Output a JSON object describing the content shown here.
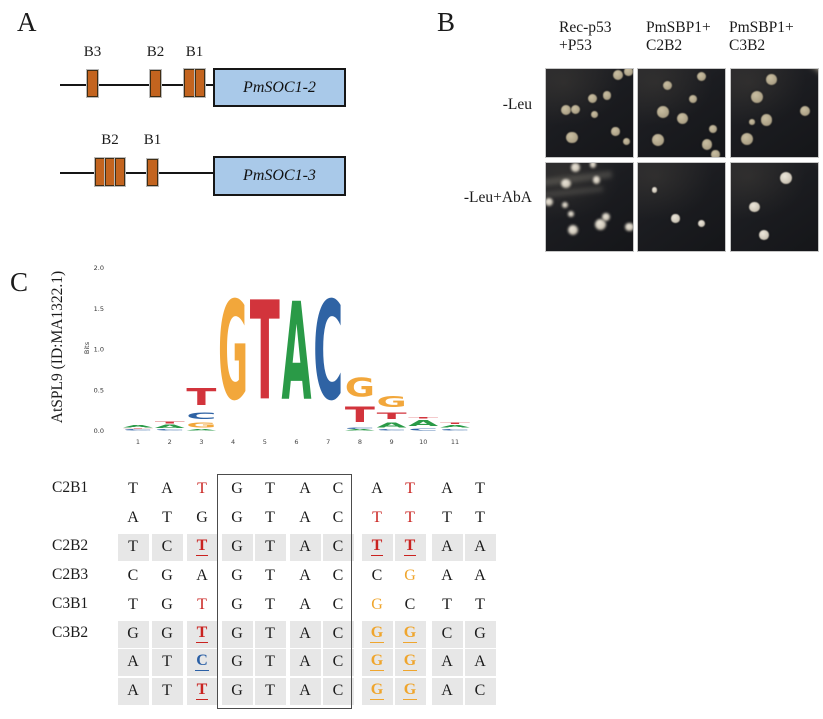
{
  "panel_a": {
    "label": "A",
    "site_color": "#c3641f",
    "gene_box_color": "#a9c9e9",
    "genes": [
      {
        "name": "PmSOC1-2",
        "sites": [
          {
            "label": "B3",
            "boxes": 1
          },
          {
            "label": "B2",
            "boxes": 1
          },
          {
            "label": "B1",
            "boxes": 2
          }
        ]
      },
      {
        "name": "PmSOC1-3",
        "sites": [
          {
            "label": "B2",
            "boxes": 3
          },
          {
            "label": "B1",
            "boxes": 1
          }
        ]
      }
    ]
  },
  "panel_b": {
    "label": "B",
    "col_labels": [
      {
        "line1": "Rec-p53",
        "line2": "+P53"
      },
      {
        "line1": "PmSBP1+",
        "line2": "C2B2"
      },
      {
        "line1": "PmSBP1+",
        "line2": "C3B2"
      }
    ],
    "row_labels": [
      "-Leu",
      "-Leu+AbA"
    ],
    "colony_colors": {
      "top": "#b7ac91",
      "bottom": "#d6d0c4"
    },
    "photos": [
      {
        "row": 0,
        "col": 0,
        "colonies": [
          [
            0.83,
            0.07,
            0.06
          ],
          [
            0.95,
            0.03,
            0.048
          ],
          [
            0.53,
            0.33,
            0.052
          ],
          [
            0.7,
            0.3,
            0.05
          ],
          [
            0.23,
            0.47,
            0.058
          ],
          [
            0.34,
            0.46,
            0.055
          ],
          [
            0.56,
            0.52,
            0.042
          ],
          [
            0.3,
            0.78,
            0.065
          ],
          [
            0.8,
            0.71,
            0.048
          ],
          [
            0.93,
            0.82,
            0.04
          ]
        ]
      },
      {
        "row": 0,
        "col": 1,
        "colonies": [
          [
            0.34,
            0.19,
            0.055
          ],
          [
            0.73,
            0.09,
            0.052
          ],
          [
            0.63,
            0.34,
            0.048
          ],
          [
            0.29,
            0.49,
            0.068
          ],
          [
            0.51,
            0.56,
            0.065
          ],
          [
            0.86,
            0.68,
            0.048
          ],
          [
            0.23,
            0.81,
            0.068
          ],
          [
            0.79,
            0.86,
            0.06
          ],
          [
            0.89,
            0.97,
            0.048
          ]
        ]
      },
      {
        "row": 0,
        "col": 2,
        "colonies": [
          [
            0.47,
            0.12,
            0.062
          ],
          [
            0.3,
            0.32,
            0.07
          ],
          [
            0.24,
            0.6,
            0.032
          ],
          [
            0.41,
            0.58,
            0.066
          ],
          [
            0.85,
            0.48,
            0.058
          ],
          [
            0.18,
            0.8,
            0.07
          ]
        ]
      },
      {
        "row": 1,
        "col": 0,
        "colonies": [
          [
            0.34,
            0.05,
            0.048
          ],
          [
            0.54,
            0.02,
            0.04
          ],
          [
            0.23,
            0.23,
            0.052
          ],
          [
            0.58,
            0.19,
            0.044
          ],
          [
            0.03,
            0.44,
            0.046
          ],
          [
            0.22,
            0.48,
            0.036
          ],
          [
            0.29,
            0.58,
            0.032
          ],
          [
            0.31,
            0.76,
            0.06
          ],
          [
            0.63,
            0.7,
            0.064
          ],
          [
            0.69,
            0.61,
            0.046
          ],
          [
            0.96,
            0.73,
            0.048
          ]
        ]
      },
      {
        "row": 1,
        "col": 1,
        "colonies": [
          [
            0.19,
            0.31,
            0.034
          ],
          [
            0.43,
            0.63,
            0.048
          ],
          [
            0.73,
            0.69,
            0.042
          ]
        ]
      },
      {
        "row": 1,
        "col": 2,
        "colonies": [
          [
            0.63,
            0.17,
            0.07
          ],
          [
            0.27,
            0.5,
            0.058
          ],
          [
            0.38,
            0.82,
            0.056
          ]
        ]
      }
    ]
  },
  "panel_c": {
    "label": "C",
    "logo_title": "AtSPL9 (ID:MA1322.1)",
    "chart_data": {
      "type": "sequence_logo",
      "title": "AtSPL9 (ID:MA1322.1)",
      "ylabel": "Bits",
      "ylim": [
        0,
        2
      ],
      "yticks": [
        "2.0",
        "1.5",
        "1.0",
        "0.5",
        "0.0"
      ],
      "positions": [
        1,
        2,
        3,
        4,
        5,
        6,
        7,
        8,
        9,
        10,
        11
      ],
      "letter_colors": {
        "A": "#2a9a47",
        "C": "#2f63a4",
        "G": "#f2a73b",
        "T": "#d2343c"
      },
      "stacks": [
        [
          [
            "C",
            0.02
          ],
          [
            "T",
            0.015
          ],
          [
            "A",
            0.05
          ]
        ],
        [
          [
            "C",
            0.025
          ],
          [
            "A",
            0.06
          ],
          [
            "T",
            0.04
          ]
        ],
        [
          [
            "A",
            0.02
          ],
          [
            "G",
            0.1
          ],
          [
            "C",
            0.13
          ],
          [
            "T",
            0.33
          ]
        ],
        [
          [
            "G",
            1.95
          ]
        ],
        [
          [
            "T",
            1.95
          ]
        ],
        [
          [
            "A",
            1.93
          ]
        ],
        [
          [
            "C",
            1.95
          ]
        ],
        [
          [
            "A",
            0.02
          ],
          [
            "C",
            0.03
          ],
          [
            "T",
            0.3
          ],
          [
            "G",
            0.37
          ]
        ],
        [
          [
            "C",
            0.02
          ],
          [
            "A",
            0.1
          ],
          [
            "T",
            0.13
          ],
          [
            "G",
            0.22
          ]
        ],
        [
          [
            "C",
            0.04
          ],
          [
            "A",
            0.11
          ],
          [
            "T",
            0.03
          ]
        ],
        [
          [
            "C",
            0.03
          ],
          [
            "A",
            0.05
          ],
          [
            "T",
            0.03
          ]
        ]
      ]
    },
    "table": {
      "highlight_colors": {
        "black": "#1b1b1b",
        "red": "#c9221f",
        "orange": "#efa52d",
        "blue": "#2a5fa5"
      },
      "rows": [
        {
          "label": "C2B1",
          "shaded": false,
          "cells": [
            "T",
            "A",
            "T:r",
            "G",
            "T",
            "A",
            "C",
            "A",
            "T:r",
            "A",
            "T"
          ]
        },
        {
          "label": "",
          "shaded": false,
          "cells": [
            "A",
            "T",
            "G",
            "G",
            "T",
            "A",
            "C",
            "T:r",
            "T:r",
            "T",
            "T"
          ]
        },
        {
          "label": "C2B2",
          "shaded": true,
          "cells": [
            "T",
            "C",
            "T:r:u",
            "G",
            "T",
            "A",
            "C",
            "T:r:u",
            "T:r:u",
            "A",
            "A"
          ]
        },
        {
          "label": "C2B3",
          "shaded": false,
          "cells": [
            "C",
            "G",
            "A",
            "G",
            "T",
            "A",
            "C",
            "C",
            "G:o",
            "A",
            "A"
          ]
        },
        {
          "label": "C3B1",
          "shaded": false,
          "cells": [
            "T",
            "G",
            "T:r",
            "G",
            "T",
            "A",
            "C",
            "G:o",
            "C",
            "T",
            "T"
          ]
        },
        {
          "label": "C3B2",
          "shaded": true,
          "cells": [
            "G",
            "G",
            "T:r:u",
            "G",
            "T",
            "A",
            "C",
            "G:o:u",
            "G:o:u",
            "C",
            "G"
          ]
        },
        {
          "label": "",
          "shaded": true,
          "cells": [
            "A",
            "T",
            "C:b:u",
            "G",
            "T",
            "A",
            "C",
            "G:o:u",
            "G:o:u",
            "A",
            "A"
          ]
        },
        {
          "label": "",
          "shaded": true,
          "cells": [
            "A",
            "T",
            "T:r:u",
            "G",
            "T",
            "A",
            "C",
            "G:o:u",
            "G:o:u",
            "A",
            "C"
          ]
        }
      ]
    }
  }
}
